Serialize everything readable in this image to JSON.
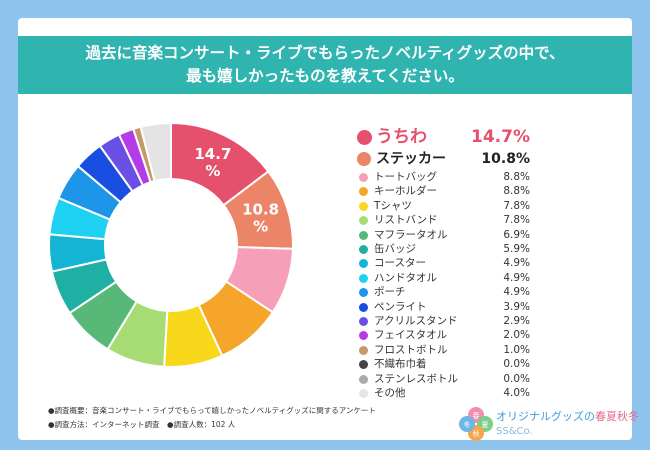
{
  "title": {
    "line1": "過去に音楽コンサート・ライブでもらったノベルティグッズの中で、",
    "line2": "最も嬉しかったものを教えてください。"
  },
  "chart_data": {
    "type": "pie",
    "style": "donut",
    "unit": "%",
    "slices": [
      {
        "label": "うちわ",
        "value": 14.7,
        "display": "14.7%",
        "color": "#e5506d"
      },
      {
        "label": "ステッカー",
        "value": 10.8,
        "display": "10.8%",
        "color": "#ec8567"
      },
      {
        "label": "トートバッグ",
        "value": 8.8,
        "display": "8.8%",
        "color": "#f59fb8"
      },
      {
        "label": "キーホルダー",
        "value": 8.8,
        "display": "8.8%",
        "color": "#f5a62a"
      },
      {
        "label": "Tシャツ",
        "value": 7.8,
        "display": "7.8%",
        "color": "#f8d81a"
      },
      {
        "label": "リストバンド",
        "value": 7.8,
        "display": "7.8%",
        "color": "#a7dc74"
      },
      {
        "label": "マフラータオル",
        "value": 6.9,
        "display": "6.9%",
        "color": "#58b877"
      },
      {
        "label": "缶バッジ",
        "value": 5.9,
        "display": "5.9%",
        "color": "#1fb0a3"
      },
      {
        "label": "コースター",
        "value": 4.9,
        "display": "4.9%",
        "color": "#14b5d4"
      },
      {
        "label": "ハンドタオル",
        "value": 4.9,
        "display": "4.9%",
        "color": "#1ed1f2"
      },
      {
        "label": "ポーチ",
        "value": 4.9,
        "display": "4.9%",
        "color": "#1d95e8"
      },
      {
        "label": "ペンライト",
        "value": 3.9,
        "display": "3.9%",
        "color": "#1a4ee0"
      },
      {
        "label": "アクリルスタンド",
        "value": 2.9,
        "display": "2.9%",
        "color": "#6a4fe6"
      },
      {
        "label": "フェイスタオル",
        "value": 2.0,
        "display": "2.0%",
        "color": "#b53be8"
      },
      {
        "label": "フロストボトル",
        "value": 1.0,
        "display": "1.0%",
        "color": "#c49a6a"
      },
      {
        "label": "不織布巾着",
        "value": 0.0,
        "display": "0.0%",
        "color": "#444444"
      },
      {
        "label": "ステンレスボトル",
        "value": 0.0,
        "display": "0.0%",
        "color": "#aaaaaa"
      },
      {
        "label": "その他",
        "value": 4.0,
        "display": "4.0%",
        "color": "#e4e4e4"
      }
    ],
    "data_labels": [
      {
        "slice": 0,
        "line1": "14.7",
        "line2": "%"
      },
      {
        "slice": 1,
        "line1": "10.8",
        "line2": "%"
      }
    ]
  },
  "notes": {
    "line1": "●調査概要：音楽コンサート・ライブでもらって嬉しかったノベルティグッズに関するアンケート",
    "line2": "●調査方法：インターネット調査　●調査人数：102 人"
  },
  "logo": {
    "text_main": "オリジナルグッズの",
    "text_seasons": "春夏秋冬",
    "text_en": "SS&Co.",
    "circle_chars": [
      "春",
      "夏",
      "秋",
      "冬"
    ]
  }
}
